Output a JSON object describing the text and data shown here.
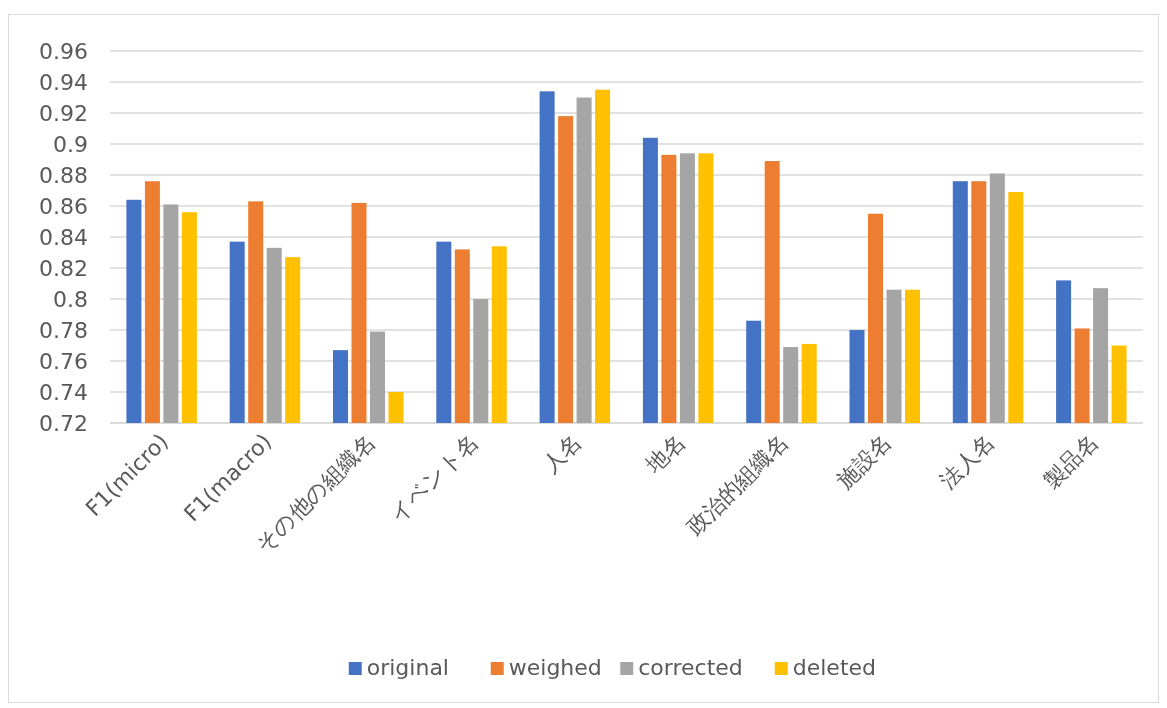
{
  "chart_data": {
    "type": "bar",
    "categories": [
      "F1(micro)",
      "F1(macro)",
      "その他の組織名",
      "イベント名",
      "人名",
      "地名",
      "政治的組織名",
      "施設名",
      "法人名",
      "製品名"
    ],
    "series": [
      {
        "name": "original",
        "color": "#4472c4",
        "values": [
          0.864,
          0.837,
          0.767,
          0.837,
          0.934,
          0.904,
          0.786,
          0.78,
          0.876,
          0.812
        ]
      },
      {
        "name": "weighed",
        "color": "#ed7d31",
        "values": [
          0.876,
          0.863,
          0.862,
          0.832,
          0.918,
          0.893,
          0.889,
          0.855,
          0.876,
          0.781
        ]
      },
      {
        "name": "corrected",
        "color": "#a5a5a5",
        "values": [
          0.861,
          0.833,
          0.779,
          0.8,
          0.93,
          0.894,
          0.769,
          0.806,
          0.881,
          0.807
        ]
      },
      {
        "name": "deleted",
        "color": "#ffc000",
        "values": [
          0.856,
          0.827,
          0.74,
          0.834,
          0.935,
          0.894,
          0.771,
          0.806,
          0.869,
          0.77
        ]
      }
    ],
    "ylim": [
      0.72,
      0.96
    ],
    "yticks": [
      0.72,
      0.74,
      0.76,
      0.78,
      0.8,
      0.82,
      0.84,
      0.86,
      0.88,
      0.9,
      0.92,
      0.94,
      0.96
    ],
    "grid": "y",
    "legend": "bottom"
  }
}
